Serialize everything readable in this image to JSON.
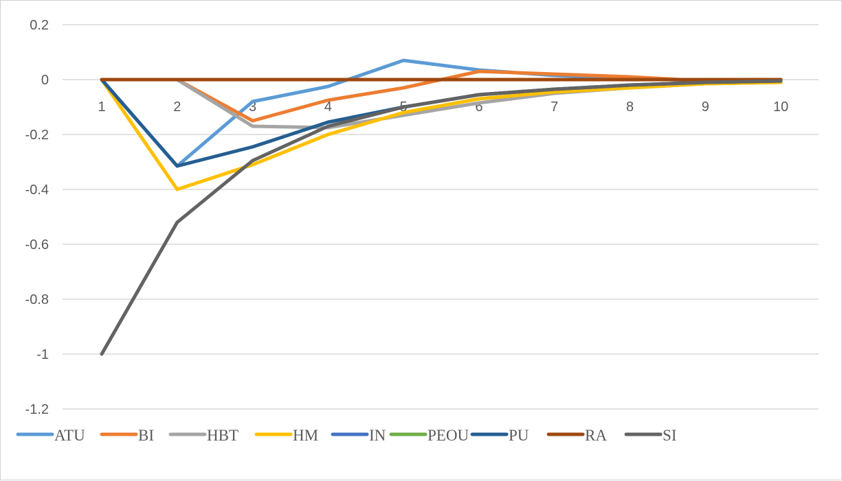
{
  "chart_data": {
    "type": "line",
    "title": "",
    "xlabel": "",
    "ylabel": "",
    "categories": [
      "1",
      "2",
      "3",
      "4",
      "5",
      "6",
      "7",
      "8",
      "9",
      "10"
    ],
    "yticks": [
      "0.2",
      "0",
      "-0.2",
      "-0.4",
      "-0.6",
      "-0.8",
      "-1",
      "-1.2"
    ],
    "ylim": [
      -1.2,
      0.2
    ],
    "grid": true,
    "legend_position": "bottom",
    "series": [
      {
        "name": "ATU",
        "color": "#5B9BD5",
        "values": [
          0,
          -0.315,
          -0.08,
          -0.025,
          0.07,
          0.035,
          0.015,
          0.005,
          -0.005,
          -0.005
        ]
      },
      {
        "name": "BI",
        "color": "#ED7D31",
        "values": [
          0,
          0,
          -0.15,
          -0.075,
          -0.03,
          0.03,
          0.02,
          0.01,
          -0.005,
          -0.005
        ]
      },
      {
        "name": "HBT",
        "color": "#A5A5A5",
        "values": [
          0,
          0,
          -0.17,
          -0.175,
          -0.13,
          -0.085,
          -0.05,
          -0.03,
          -0.015,
          -0.01
        ]
      },
      {
        "name": "HM",
        "color": "#FFC000",
        "values": [
          0,
          -0.4,
          -0.31,
          -0.2,
          -0.12,
          -0.07,
          -0.045,
          -0.03,
          -0.015,
          -0.01
        ]
      },
      {
        "name": "IN",
        "color": "#4472C4",
        "values": [
          0,
          0,
          0,
          0,
          0,
          0,
          0,
          0,
          0,
          0
        ]
      },
      {
        "name": "PEOU",
        "color": "#70AD47",
        "values": [
          0,
          0,
          0,
          0,
          0,
          0,
          0,
          0,
          0,
          0
        ]
      },
      {
        "name": "PU",
        "color": "#255E91",
        "values": [
          0,
          -0.315,
          -0.245,
          -0.155,
          -0.1,
          -0.055,
          -0.035,
          -0.02,
          -0.01,
          -0.005
        ]
      },
      {
        "name": "RA",
        "color": "#9E480E",
        "values": [
          0,
          0,
          0,
          0,
          0,
          0,
          0,
          0,
          0,
          0
        ]
      },
      {
        "name": "SI",
        "color": "#636363",
        "values": [
          -1,
          -0.52,
          -0.295,
          -0.17,
          -0.1,
          -0.055,
          -0.035,
          -0.02,
          -0.01,
          -0.005
        ]
      }
    ]
  }
}
